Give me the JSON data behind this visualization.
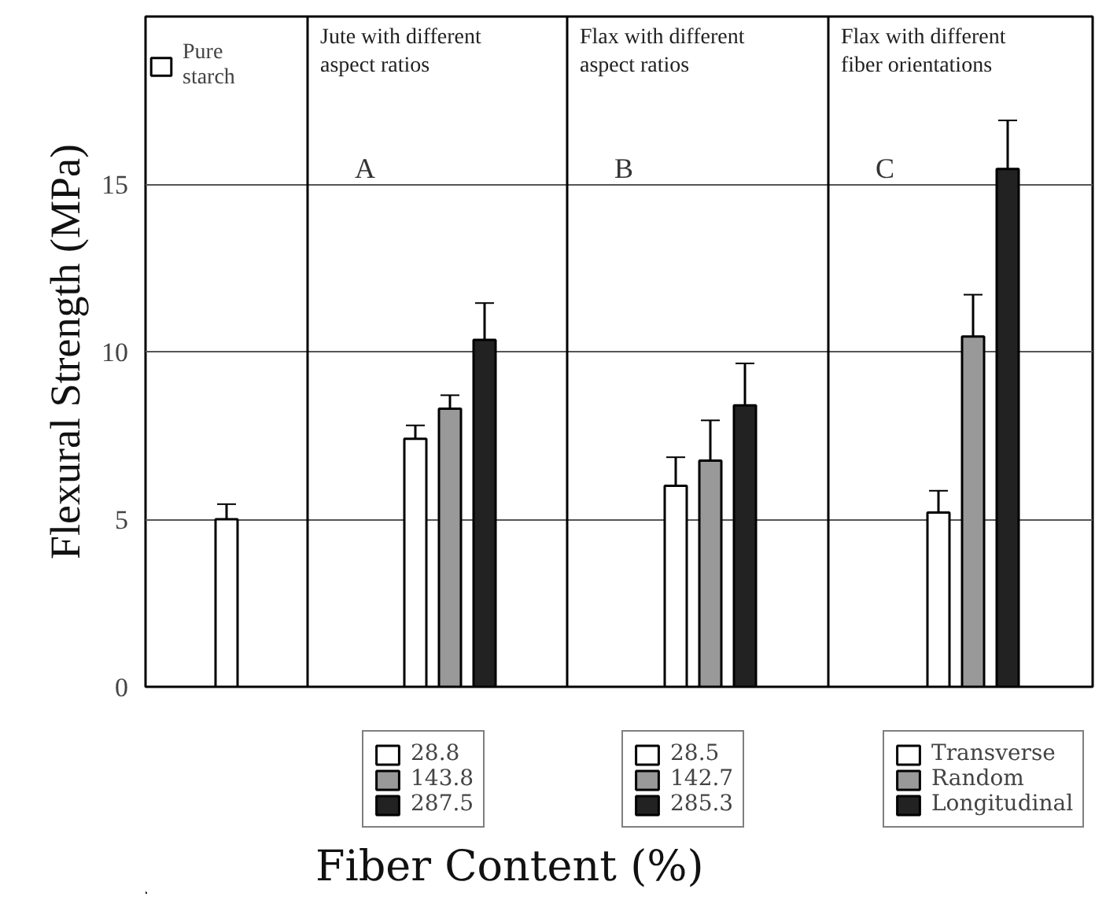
{
  "chart_data": {
    "type": "bar",
    "ylabel": "Flexural Strength (MPa)",
    "xlabel": "Fiber Content (%)",
    "categories": [
      null,
      null,
      null,
      null
    ],
    "ylim": [
      0,
      20
    ],
    "yticks": [
      0,
      5,
      10,
      15
    ],
    "grid": "y",
    "legend": "bottom",
    "annotations": [
      "Jute with different aspect ratios",
      "A",
      "Flax with different aspect ratios",
      "B",
      "Flax with different fiber orientations",
      "C"
    ],
    "series": [
      {
        "name": "Pure starch",
        "color": "#ffffff",
        "values": [
          5.0,
          null,
          null,
          null
        ],
        "errors": [
          0.45,
          null,
          null,
          null
        ]
      },
      {
        "name": "28.8",
        "color": "#ffffff",
        "values": [
          null,
          7.4,
          null,
          null
        ],
        "errors": [
          null,
          0.4,
          null,
          null
        ]
      },
      {
        "name": "143.8",
        "color": "#999999",
        "values": [
          null,
          8.3,
          null,
          null
        ],
        "errors": [
          null,
          0.4,
          null,
          null
        ]
      },
      {
        "name": "287.5",
        "color": "#222222",
        "values": [
          null,
          10.35,
          null,
          null
        ],
        "errors": [
          null,
          1.1,
          null,
          null
        ]
      },
      {
        "name": "28.5",
        "color": "#ffffff",
        "values": [
          null,
          null,
          6.0,
          null
        ],
        "errors": [
          null,
          null,
          0.85,
          null
        ]
      },
      {
        "name": "142.7",
        "color": "#999999",
        "values": [
          null,
          null,
          6.75,
          null
        ],
        "errors": [
          null,
          null,
          1.2,
          null
        ]
      },
      {
        "name": "285.3",
        "color": "#222222",
        "values": [
          null,
          null,
          8.4,
          null
        ],
        "errors": [
          null,
          null,
          1.25,
          null
        ]
      },
      {
        "name": "Transverse",
        "color": "#ffffff",
        "values": [
          null,
          null,
          null,
          5.2
        ],
        "errors": [
          null,
          null,
          null,
          0.65
        ]
      },
      {
        "name": "Random",
        "color": "#999999",
        "values": [
          null,
          null,
          null,
          10.45
        ],
        "errors": [
          null,
          null,
          null,
          1.25
        ]
      },
      {
        "name": "Longitudinal",
        "color": "#222222",
        "values": [
          null,
          null,
          null,
          15.45
        ],
        "errors": [
          null,
          null,
          null,
          1.45
        ]
      }
    ]
  }
}
